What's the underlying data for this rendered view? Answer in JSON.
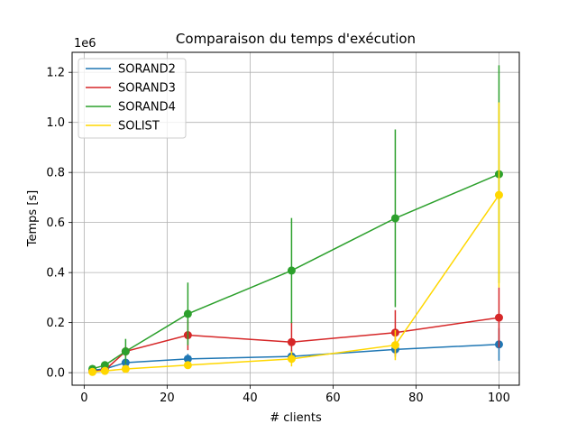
{
  "chart_data": {
    "type": "line",
    "title": "Comparaison du temps d'exécution",
    "xlabel": "# clients",
    "ylabel": "Temps [s]",
    "y_offset_label": "1e6",
    "xlim": [
      -2.9,
      104.9
    ],
    "ylim": [
      -0.05,
      1.28
    ],
    "xticks": [
      0,
      20,
      40,
      60,
      80,
      100
    ],
    "yticks": [
      0.0,
      0.2,
      0.4,
      0.6,
      0.8,
      1.0,
      1.2
    ],
    "grid": true,
    "legend_position": "top-left",
    "series": [
      {
        "name": "SORAND2",
        "color": "#1f77b4",
        "x": [
          2,
          5,
          10,
          25,
          50,
          75,
          100
        ],
        "y": [
          0.01,
          0.015,
          0.04,
          0.055,
          0.065,
          0.093,
          0.113
        ],
        "yerr": [
          0.005,
          0.01,
          0.015,
          0.02,
          0.025,
          0.03,
          0.065
        ]
      },
      {
        "name": "SORAND3",
        "color": "#d62728",
        "x": [
          2,
          5,
          10,
          25,
          50,
          75,
          100
        ],
        "y": [
          0.005,
          0.01,
          0.085,
          0.15,
          0.122,
          0.16,
          0.22
        ],
        "yerr": [
          0.003,
          0.005,
          0.02,
          0.06,
          0.08,
          0.09,
          0.12
        ]
      },
      {
        "name": "SORAND4",
        "color": "#2ca02c",
        "x": [
          2,
          5,
          10,
          25,
          50,
          75,
          100
        ],
        "y": [
          0.015,
          0.03,
          0.085,
          0.235,
          0.408,
          0.617,
          0.793
        ],
        "yerr": [
          0.01,
          0.015,
          0.05,
          0.125,
          0.21,
          0.355,
          0.435
        ]
      },
      {
        "name": "SOLIST",
        "color": "#ffd700",
        "x": [
          2,
          5,
          10,
          25,
          50,
          75,
          100
        ],
        "y": [
          0.003,
          0.007,
          0.015,
          0.03,
          0.055,
          0.11,
          0.71
        ],
        "yerr": [
          0.002,
          0.004,
          0.008,
          0.015,
          0.03,
          0.06,
          0.37
        ]
      }
    ]
  }
}
